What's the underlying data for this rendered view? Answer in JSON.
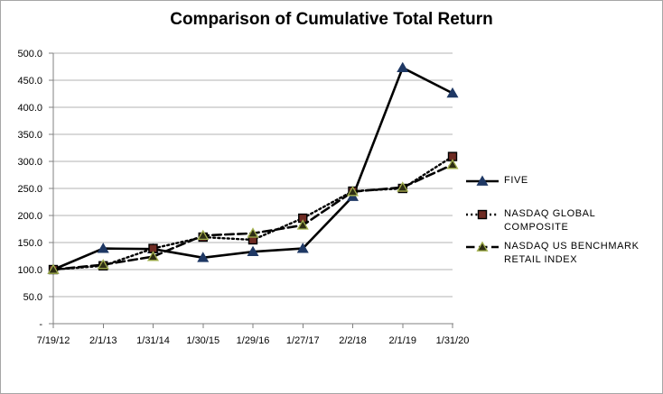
{
  "chart_data": {
    "type": "line",
    "title": "Comparison of Cumulative Total Return",
    "categories": [
      "7/19/12",
      "2/1/13",
      "1/31/14",
      "1/30/15",
      "1/29/16",
      "1/27/17",
      "2/2/18",
      "2/1/19",
      "1/31/20"
    ],
    "series": [
      {
        "name": "FIVE",
        "line_style": "solid",
        "line_color": "#000000",
        "marker": "triangle",
        "marker_fill": "#1f3864",
        "marker_stroke": "#1f3864",
        "values": [
          100,
          139,
          138,
          122,
          133,
          139,
          235,
          473,
          426
        ]
      },
      {
        "name": "NASDAQ GLOBAL COMPOSITE",
        "line_style": "dotted",
        "line_color": "#000000",
        "marker": "square",
        "marker_fill": "#6e2b23",
        "marker_stroke": "#000000",
        "values": [
          100,
          107,
          139,
          160,
          155,
          195,
          245,
          250,
          309
        ]
      },
      {
        "name": "NASDAQ US BENCHMARK RETAIL INDEX",
        "line_style": "dashed",
        "line_color": "#000000",
        "marker": "triangle",
        "marker_fill": "#2e2e15",
        "marker_stroke": "#a2b04e",
        "values": [
          100,
          109,
          124,
          163,
          167,
          182,
          244,
          252,
          294
        ]
      }
    ],
    "xlabel": "",
    "ylabel": "",
    "ylim": [
      0,
      500
    ],
    "y_ticks": [
      {
        "value": 500,
        "label": "500.0"
      },
      {
        "value": 450,
        "label": "450.0"
      },
      {
        "value": 400,
        "label": "400.0"
      },
      {
        "value": 350,
        "label": "350.0"
      },
      {
        "value": 300,
        "label": "300.0"
      },
      {
        "value": 250,
        "label": "250.0"
      },
      {
        "value": 200,
        "label": "200.0"
      },
      {
        "value": 150,
        "label": "150.0"
      },
      {
        "value": 100,
        "label": "100.0"
      },
      {
        "value": 50,
        "label": "50.0"
      },
      {
        "value": 0,
        "label": "-"
      }
    ],
    "grid": true,
    "legend_position": "right",
    "colors": {
      "background": "#ffffff",
      "border": "#a6a6a6",
      "gridline": "#b3b3b3",
      "axis": "#808080",
      "text": "#000000"
    }
  }
}
